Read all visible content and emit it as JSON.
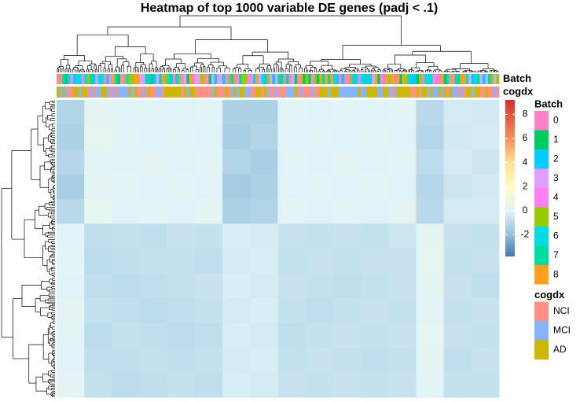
{
  "chart_data": {
    "type": "heatmap",
    "title": "Heatmap of top 1000 variable DE genes (padj < .1)",
    "annotations": [
      {
        "name": "Batch",
        "levels": [
          "0",
          "1",
          "2",
          "3",
          "4",
          "5",
          "6",
          "7",
          "8"
        ],
        "colors": [
          "#FF80C8",
          "#00CC60",
          "#00CCFF",
          "#DDA0FF",
          "#FF80F4",
          "#99CC00",
          "#00DDE0",
          "#00DDA0",
          "#FFA020"
        ]
      },
      {
        "name": "cogdx",
        "levels": [
          "NCI",
          "MCI",
          "AD"
        ],
        "colors": [
          "#FF9088",
          "#88B4FF",
          "#CCB800"
        ]
      }
    ],
    "values": [
      [
        -1.2,
        0.2,
        0.0,
        0.1,
        0.0,
        0.1,
        -1.3,
        -1.3,
        0.1,
        0.0,
        0.1,
        0.0,
        0.1,
        -1.0,
        -0.3,
        -0.4
      ],
      [
        -1.3,
        0.3,
        0.1,
        0.0,
        0.1,
        0.0,
        -1.4,
        -1.2,
        0.0,
        0.1,
        0.0,
        0.1,
        0.0,
        -1.1,
        -0.4,
        -0.3
      ],
      [
        -1.1,
        0.1,
        0.0,
        0.2,
        0.0,
        0.1,
        -1.2,
        -1.4,
        0.1,
        0.0,
        0.2,
        0.0,
        0.1,
        -0.9,
        -0.3,
        -0.5
      ],
      [
        -1.4,
        0.2,
        0.1,
        0.0,
        0.1,
        0.0,
        -1.5,
        -1.3,
        0.0,
        0.1,
        0.0,
        0.1,
        0.0,
        -1.1,
        -0.5,
        -0.4
      ],
      [
        -1.0,
        0.3,
        0.0,
        0.1,
        0.0,
        0.2,
        -1.3,
        -1.2,
        0.1,
        0.0,
        0.1,
        0.0,
        0.2,
        -1.0,
        -0.3,
        -0.3
      ],
      [
        0.0,
        -0.8,
        -0.7,
        -0.8,
        -0.6,
        -0.7,
        -0.2,
        -0.3,
        -0.6,
        -0.7,
        -0.6,
        -0.7,
        -0.5,
        0.2,
        -0.6,
        -0.7
      ],
      [
        0.1,
        -0.9,
        -0.8,
        -0.7,
        -0.7,
        -0.8,
        -0.3,
        -0.2,
        -0.7,
        -0.6,
        -0.7,
        -0.6,
        -0.6,
        0.3,
        -0.7,
        -0.6
      ],
      [
        0.0,
        -0.8,
        -0.9,
        -0.8,
        -0.7,
        -0.6,
        -0.2,
        -0.3,
        -0.6,
        -0.7,
        -0.8,
        -0.7,
        -0.6,
        0.2,
        -0.6,
        -0.8
      ],
      [
        0.2,
        -0.7,
        -0.8,
        -0.9,
        -0.8,
        -0.7,
        -0.3,
        -0.2,
        -0.7,
        -0.8,
        -0.7,
        -0.6,
        -0.7,
        0.1,
        -0.7,
        -0.6
      ],
      [
        0.1,
        -0.9,
        -0.7,
        -0.8,
        -0.9,
        -0.8,
        -0.2,
        -0.3,
        -0.8,
        -0.7,
        -0.6,
        -0.7,
        -0.6,
        0.3,
        -0.6,
        -0.7
      ],
      [
        0.0,
        -0.8,
        -0.8,
        -0.7,
        -0.8,
        -0.7,
        -0.3,
        -0.2,
        -0.7,
        -0.6,
        -0.7,
        -0.8,
        -0.7,
        0.2,
        -0.8,
        -0.6
      ],
      [
        0.2,
        -0.7,
        -0.9,
        -0.8,
        -0.7,
        -0.8,
        -0.2,
        -0.3,
        -0.6,
        -0.7,
        -0.6,
        -0.7,
        -0.6,
        0.1,
        -0.7,
        -0.7
      ]
    ],
    "clim": [
      -3.8,
      9.2
    ],
    "cticks": [
      8,
      6,
      4,
      2,
      0,
      -2
    ],
    "colorscale": [
      {
        "value": -3.8,
        "color": "#4575b4"
      },
      {
        "value": -2,
        "color": "#91bfdb"
      },
      {
        "value": 0,
        "color": "#e0f3f8"
      },
      {
        "value": 2,
        "color": "#ffffbf"
      },
      {
        "value": 4,
        "color": "#fee090"
      },
      {
        "value": 6,
        "color": "#fc8d59"
      },
      {
        "value": 9.2,
        "color": "#d73027"
      }
    ]
  }
}
